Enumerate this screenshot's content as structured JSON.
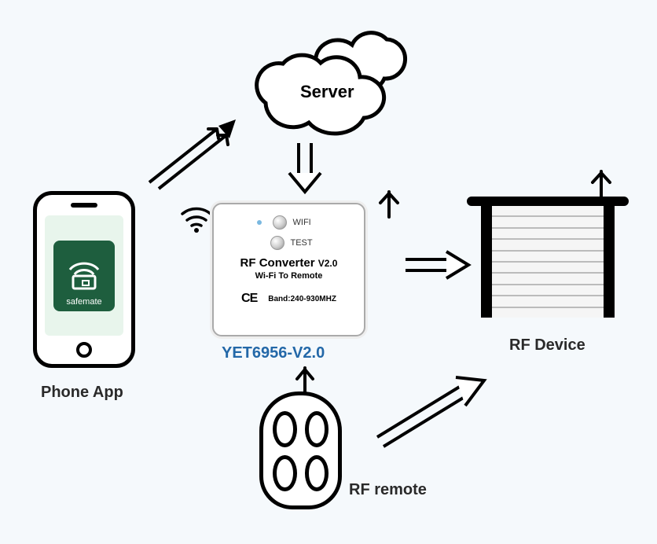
{
  "diagram": {
    "type": "flowchart",
    "background_color": "#f5f9fc",
    "stroke_color": "#000000",
    "label_color": "#2a2a2a",
    "label_fontsize": 20
  },
  "server": {
    "label": "Server",
    "shape": "cloud"
  },
  "phone": {
    "label": "Phone App",
    "app_name": "safemate",
    "tile_color": "#1e5e3e"
  },
  "converter": {
    "model_label": "YET6956-V2.0",
    "title": "RF Converter",
    "version": "V2.0",
    "subtitle": "Wi-Fi To Remote",
    "band_text": "Band:240-930MHZ",
    "ce_mark": "CE",
    "btn_wifi": "WIFI",
    "btn_test": "TEST"
  },
  "rf_device": {
    "label": "RF Device",
    "slat_count": 10
  },
  "remote": {
    "label": "RF remote",
    "button_count": 4
  },
  "arrows": [
    {
      "from": "phone",
      "to": "server"
    },
    {
      "from": "server",
      "to": "converter"
    },
    {
      "from": "converter",
      "to": "rf_device"
    },
    {
      "from": "remote",
      "to": "rf_device"
    }
  ]
}
